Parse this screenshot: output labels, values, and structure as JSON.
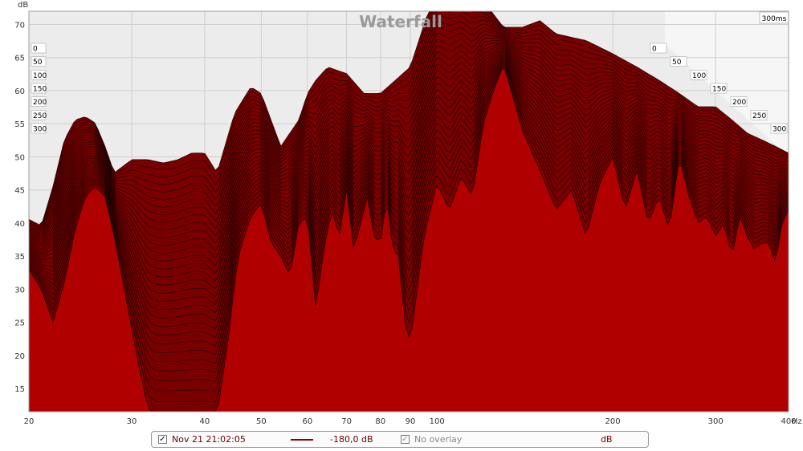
{
  "chart_data": {
    "type": "area",
    "title": "Waterfall",
    "ylabel": "dB",
    "xlabel": "Hz",
    "x_scale": "log",
    "xlim": [
      20,
      400
    ],
    "ylim": [
      11.5,
      72
    ],
    "x_ticks": [
      "20",
      "30",
      "40",
      "50",
      "60",
      "70",
      "80",
      "90",
      "100",
      "200",
      "300",
      "400"
    ],
    "y_ticks": [
      "15",
      "20",
      "25",
      "30",
      "35",
      "40",
      "45",
      "50",
      "55",
      "60",
      "65",
      "70"
    ],
    "time_ticks": [
      "0",
      "50",
      "100",
      "150",
      "200",
      "250",
      "300"
    ],
    "time_max_label": "300ms",
    "grid": true,
    "front_curve": {
      "x": [
        20,
        21,
        22,
        23,
        24,
        25,
        26,
        27,
        28,
        30,
        31,
        32,
        33,
        34,
        35,
        36,
        37,
        38,
        39,
        40,
        42,
        44,
        45,
        46,
        48,
        50,
        52,
        54,
        56,
        58,
        60,
        62,
        64,
        66,
        68,
        70,
        72,
        74,
        76,
        78,
        80,
        82,
        84,
        86,
        88,
        90,
        95,
        100,
        105,
        110,
        115,
        120,
        125,
        130,
        140,
        150,
        160,
        170,
        180,
        190,
        200,
        210,
        220,
        230,
        240,
        250,
        260,
        270,
        280,
        290,
        300,
        310,
        320,
        330,
        340,
        350,
        360,
        370,
        380,
        390,
        400
      ],
      "y": [
        33,
        30,
        25,
        31,
        39,
        44,
        45.5,
        44,
        38,
        24,
        17.5,
        12,
        11,
        11,
        11,
        11,
        11,
        11,
        11,
        11,
        11,
        23,
        31,
        36,
        41,
        43,
        37,
        35,
        32,
        40,
        41,
        27,
        36,
        42,
        38,
        45,
        36,
        40,
        44,
        38,
        37,
        44,
        36,
        35,
        25,
        22,
        38,
        46,
        42,
        47,
        44,
        55,
        60,
        64,
        54,
        48,
        42,
        45,
        38,
        46,
        50,
        42,
        48,
        40,
        44,
        39,
        50,
        44,
        40,
        41,
        38,
        40,
        35,
        41,
        38,
        36,
        37,
        37,
        34,
        40,
        42
      ]
    },
    "back_curve": {
      "x": [
        20,
        21,
        22,
        23,
        24,
        25,
        26,
        27,
        28,
        30,
        32,
        34,
        36,
        38,
        40,
        42,
        45,
        48,
        50,
        54,
        58,
        60,
        62,
        65,
        70,
        75,
        80,
        90,
        100,
        110,
        120,
        130,
        140,
        150,
        160,
        180,
        200,
        220,
        240,
        260,
        280,
        300,
        320,
        340,
        360,
        380,
        400
      ],
      "y": [
        35,
        34,
        40,
        47,
        50,
        50.5,
        49.5,
        46,
        42,
        44,
        44,
        43.5,
        44,
        45,
        45,
        42,
        51,
        55,
        54,
        46,
        50,
        54,
        56,
        58,
        57,
        54,
        54,
        58,
        70.5,
        70,
        68,
        64,
        64,
        65,
        63,
        62,
        60,
        58,
        56,
        54,
        52,
        52,
        50,
        48,
        47,
        46,
        45
      ]
    },
    "series": [
      {
        "name": "Nov 21 21:02:05",
        "values_note": ""
      }
    ]
  },
  "legend": {
    "measurement_checked": "✓",
    "measurement_name": "Nov 21 21:02:05",
    "level": "-180,0 dB",
    "overlay_checked": "✓",
    "overlay_label": "No overlay",
    "unit": "dB"
  },
  "colors": {
    "fill": "#b00000",
    "slice_fill": "#7a0000",
    "outline": "#1e0000",
    "plot_bg": "#ececec",
    "grid": "#cfcfcf",
    "legend_text": "#6b0000"
  }
}
